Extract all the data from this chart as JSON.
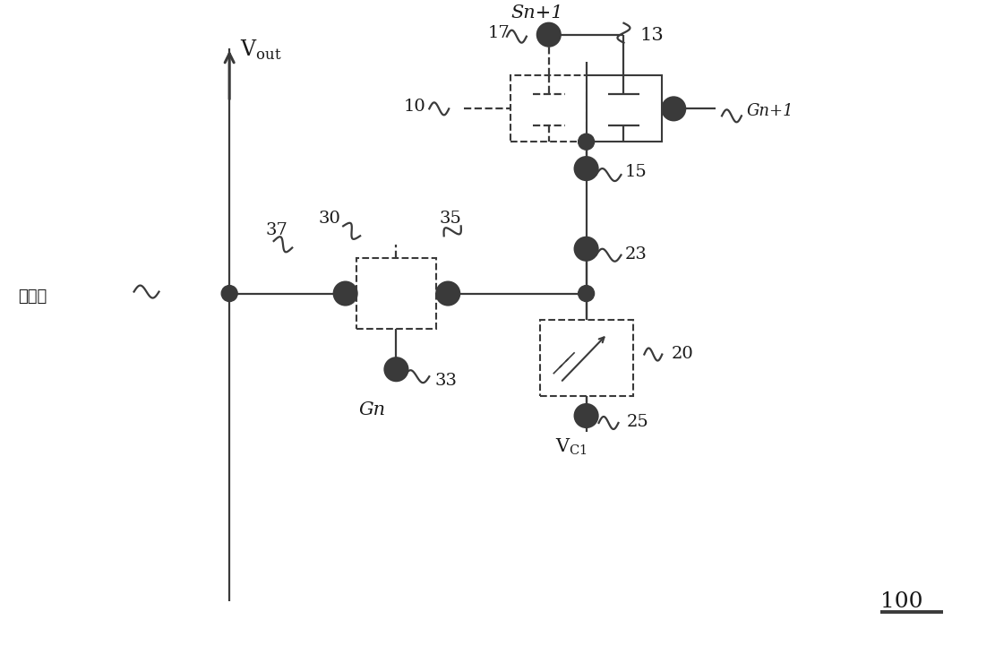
{
  "bg_color": "#ffffff",
  "line_color": "#3a3a3a",
  "text_color": "#1a1a1a",
  "fig_width": 11.11,
  "fig_height": 7.21,
  "dpi": 100,
  "xlim": [
    0,
    11.11
  ],
  "ylim": [
    0,
    7.21
  ]
}
